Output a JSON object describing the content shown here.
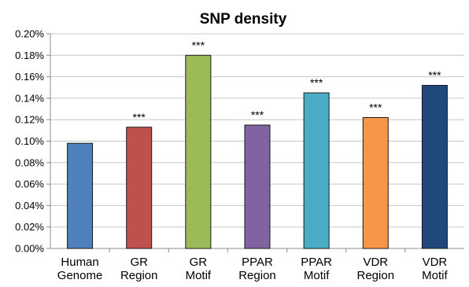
{
  "chart_data": {
    "type": "bar",
    "title": "SNP density",
    "xlabel": "",
    "ylabel": "",
    "ylim": [
      0,
      0.2
    ],
    "yticks": [
      "0.00%",
      "0.02%",
      "0.04%",
      "0.06%",
      "0.08%",
      "0.10%",
      "0.12%",
      "0.14%",
      "0.16%",
      "0.18%",
      "0.20%"
    ],
    "ytick_values": [
      0,
      0.02,
      0.04,
      0.06,
      0.08,
      0.1,
      0.12,
      0.14,
      0.16,
      0.18,
      0.2
    ],
    "grid": true,
    "legend": "none",
    "categories": [
      [
        "Human",
        "Genome"
      ],
      [
        "GR",
        "Region"
      ],
      [
        "GR",
        "Motif"
      ],
      [
        "PPAR",
        "Region"
      ],
      [
        "PPAR",
        "Motif"
      ],
      [
        "VDR",
        "Region"
      ],
      [
        "VDR",
        "Motif"
      ]
    ],
    "values": [
      0.098,
      0.113,
      0.18,
      0.115,
      0.145,
      0.122,
      0.152
    ],
    "significance": [
      "",
      "***",
      "***",
      "***",
      "***",
      "***",
      "***"
    ],
    "colors": [
      "#4f81bd",
      "#c0504d",
      "#9bbb59",
      "#8064a2",
      "#4bacc6",
      "#f79646",
      "#1f497d"
    ]
  }
}
